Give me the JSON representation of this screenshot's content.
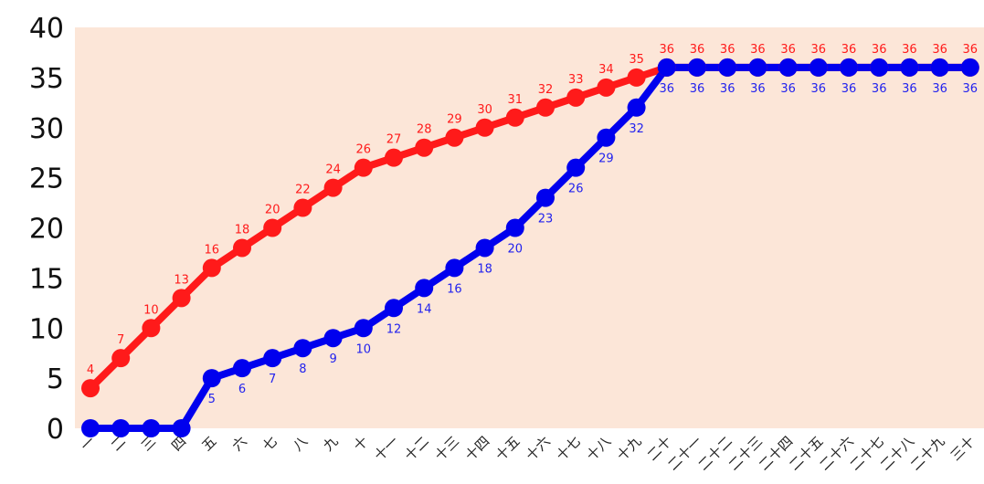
{
  "chart_data": {
    "type": "line",
    "title": "",
    "xlabel": "",
    "ylabel": "",
    "categories": [
      "一",
      "二",
      "三",
      "四",
      "五",
      "六",
      "七",
      "八",
      "九",
      "十",
      "十一",
      "十二",
      "十三",
      "十四",
      "十五",
      "十六",
      "十七",
      "十八",
      "十九",
      "二十",
      "二十一",
      "二十二",
      "二十三",
      "二十四",
      "二十五",
      "二十六",
      "二十七",
      "二十八",
      "二十九",
      "三十"
    ],
    "ylim": [
      0,
      40
    ],
    "yticks": [
      0,
      5,
      10,
      15,
      20,
      25,
      30,
      35,
      40
    ],
    "grid": false,
    "plot_background": "#fce6d8",
    "series": [
      {
        "color": "#ff1a1a",
        "label_color": "#ff1a1a",
        "label_position": "above",
        "values": [
          4,
          7,
          10,
          13,
          16,
          18,
          20,
          22,
          24,
          26,
          27,
          28,
          29,
          30,
          31,
          32,
          33,
          34,
          35,
          36,
          36,
          36,
          36,
          36,
          36,
          36,
          36,
          36,
          36,
          36
        ]
      },
      {
        "color": "#0000ee",
        "label_color": "#2222ee",
        "label_position": "below",
        "values": [
          0,
          0,
          0,
          0,
          5,
          6,
          7,
          8,
          9,
          10,
          12,
          14,
          16,
          18,
          20,
          23,
          26,
          29,
          32,
          36,
          36,
          36,
          36,
          36,
          36,
          36,
          36,
          36,
          36,
          36
        ]
      }
    ]
  }
}
